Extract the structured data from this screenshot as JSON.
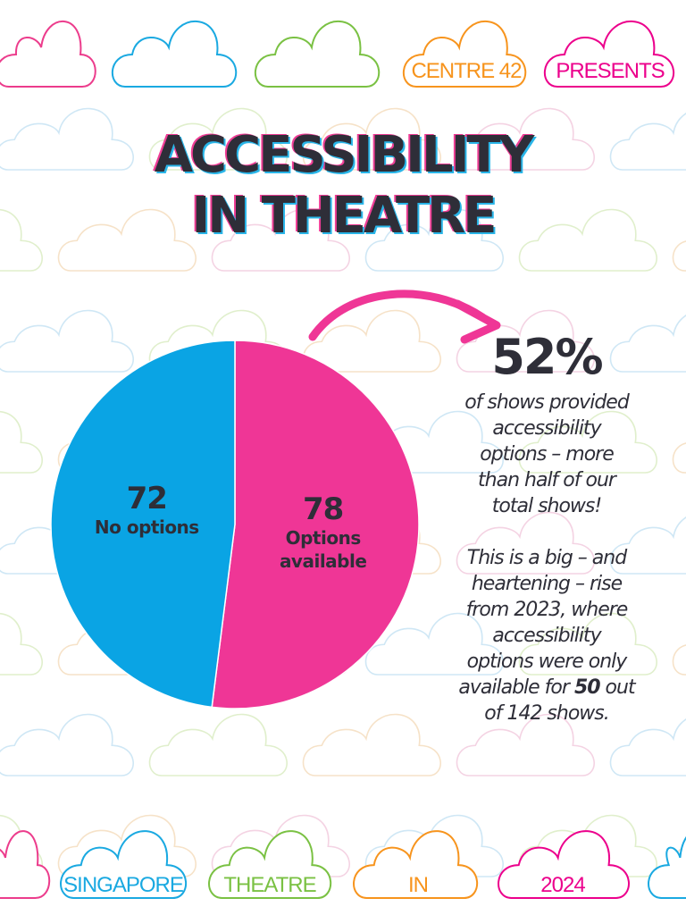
{
  "header": {
    "tags": [
      {
        "text": "CENTRE 42",
        "color": "#f7941d"
      },
      {
        "text": "PRESENTS",
        "color": "#ec008c"
      }
    ]
  },
  "title": {
    "line1": "ACCESSIBILITY",
    "line2": "IN THEATRE"
  },
  "chart_data": {
    "type": "pie",
    "slices": [
      {
        "value": 78,
        "label": "Options available",
        "color": "#ef3696"
      },
      {
        "value": 72,
        "label": "No options",
        "color": "#0aa4e4"
      }
    ]
  },
  "stat": {
    "percent": "52%",
    "lines1": [
      "of shows provided",
      "accessibility",
      "options – more",
      "than half of our",
      "total shows!"
    ],
    "lines2_a": [
      "This is a big – and",
      "heartening – rise",
      "from 2023, where",
      "accessibility",
      "options were only"
    ],
    "line2_pre": "available for ",
    "line2_bold": "50",
    "line2_post": " out",
    "line2_last": "of 142 shows."
  },
  "footer": {
    "tags": [
      {
        "text": "SINGAPORE",
        "color": "#1aa9e1"
      },
      {
        "text": "THEATRE",
        "color": "#7ac143"
      },
      {
        "text": "IN",
        "color": "#f7941d"
      },
      {
        "text": "2024",
        "color": "#ec008c"
      }
    ]
  },
  "colors": {
    "pink": "#ef3696",
    "blue": "#0aa4e4",
    "dark": "#2e2e38",
    "arrow": "#ef3696"
  }
}
